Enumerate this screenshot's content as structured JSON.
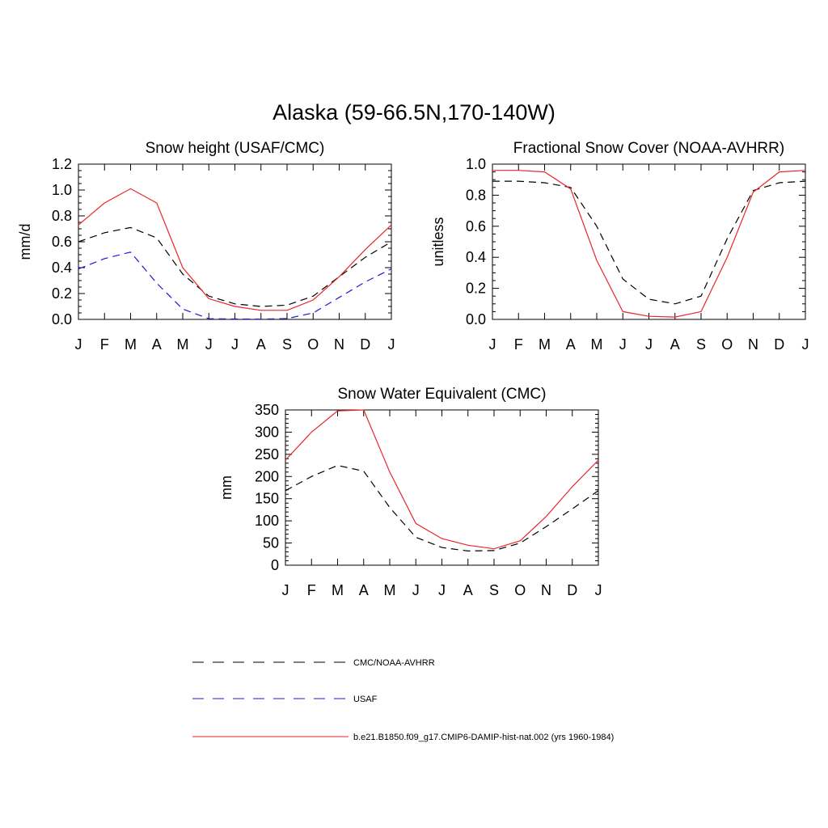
{
  "figure": {
    "title": "Alaska (59-66.5N,170-140W)"
  },
  "legend": {
    "position": "bottom",
    "entries": [
      {
        "label": "CMC/NOAA-AVHRR",
        "color": "#000000",
        "dash": "dashed"
      },
      {
        "label": "USAF",
        "color": "#1a1ad6",
        "dash": "dashed"
      },
      {
        "label": "b.e21.B1850.f09_g17.CMIP6-DAMIP-hist-nat.002 (yrs 1960-1984)",
        "color": "#e8262a",
        "dash": "solid"
      }
    ]
  },
  "chart_data": [
    {
      "type": "line",
      "title": "Snow height (USAF/CMC)",
      "xlabel": "",
      "ylabel": "mm/d",
      "categories": [
        "J",
        "F",
        "M",
        "A",
        "M",
        "J",
        "J",
        "A",
        "S",
        "O",
        "N",
        "D",
        "J"
      ],
      "ylim": [
        0,
        1.2
      ],
      "yticks": [
        "0.0",
        "0.2",
        "0.4",
        "0.6",
        "0.8",
        "1.0",
        "1.2"
      ],
      "yminor": 0.05,
      "grid": false,
      "series": [
        {
          "name": "CMC/NOAA-AVHRR",
          "color": "#000000",
          "dash": "dashed",
          "values": [
            0.6,
            0.67,
            0.71,
            0.63,
            0.35,
            0.18,
            0.12,
            0.1,
            0.11,
            0.18,
            0.33,
            0.48,
            0.6
          ]
        },
        {
          "name": "USAF",
          "color": "#1a1ad6",
          "dash": "dashed",
          "values": [
            0.39,
            0.47,
            0.52,
            0.28,
            0.08,
            0.005,
            0.003,
            0.002,
            0.006,
            0.05,
            0.17,
            0.29,
            0.39
          ]
        },
        {
          "name": "b.e21.B1850.f09_g17.CMIP6-DAMIP-hist-nat.002 (yrs 1960-1984)",
          "color": "#e8262a",
          "dash": "solid",
          "values": [
            0.73,
            0.9,
            1.01,
            0.9,
            0.4,
            0.16,
            0.1,
            0.07,
            0.07,
            0.15,
            0.33,
            0.54,
            0.73
          ]
        }
      ]
    },
    {
      "type": "line",
      "title": "Fractional Snow Cover (NOAA-AVHRR)",
      "xlabel": "",
      "ylabel": "unitless",
      "categories": [
        "J",
        "F",
        "M",
        "A",
        "M",
        "J",
        "J",
        "A",
        "S",
        "O",
        "N",
        "D",
        "J"
      ],
      "ylim": [
        0,
        1.0
      ],
      "yticks": [
        "0.0",
        "0.2",
        "0.4",
        "0.6",
        "0.8",
        "1.0"
      ],
      "yminor": 0.05,
      "grid": false,
      "series": [
        {
          "name": "CMC/NOAA-AVHRR",
          "color": "#000000",
          "dash": "dashed",
          "values": [
            0.89,
            0.89,
            0.88,
            0.85,
            0.6,
            0.26,
            0.13,
            0.1,
            0.15,
            0.52,
            0.83,
            0.88,
            0.89
          ]
        },
        {
          "name": "b.e21.B1850.f09_g17.CMIP6-DAMIP-hist-nat.002 (yrs 1960-1984)",
          "color": "#e8262a",
          "dash": "solid",
          "values": [
            0.96,
            0.96,
            0.95,
            0.84,
            0.38,
            0.05,
            0.02,
            0.015,
            0.05,
            0.4,
            0.82,
            0.95,
            0.96
          ]
        }
      ]
    },
    {
      "type": "line",
      "title": "Snow Water Equivalent (CMC)",
      "xlabel": "",
      "ylabel": "mm",
      "categories": [
        "J",
        "F",
        "M",
        "A",
        "M",
        "J",
        "J",
        "A",
        "S",
        "O",
        "N",
        "D",
        "J"
      ],
      "ylim": [
        0,
        350
      ],
      "yticks": [
        "0",
        "50",
        "100",
        "150",
        "200",
        "250",
        "300",
        "350"
      ],
      "yminor": 10,
      "grid": false,
      "series": [
        {
          "name": "CMC/NOAA-AVHRR",
          "color": "#000000",
          "dash": "dashed",
          "values": [
            168,
            200,
            225,
            212,
            130,
            63,
            40,
            32,
            33,
            50,
            87,
            127,
            168
          ]
        },
        {
          "name": "b.e21.B1850.f09_g17.CMIP6-DAMIP-hist-nat.002 (yrs 1960-1984)",
          "color": "#e8262a",
          "dash": "solid",
          "values": [
            237,
            300,
            348,
            350,
            210,
            94,
            60,
            45,
            37,
            55,
            110,
            177,
            237
          ]
        }
      ]
    }
  ]
}
